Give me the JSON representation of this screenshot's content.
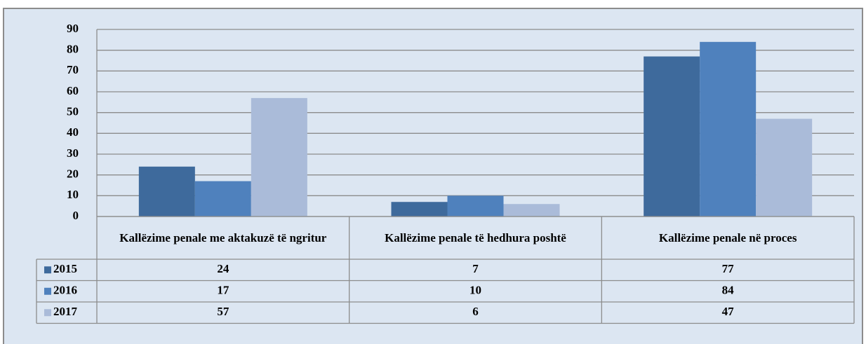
{
  "chart_data": {
    "type": "bar",
    "categories": [
      "Kallëzime penale me aktakuzë të ngritur",
      "Kallëzime penale të hedhura poshtë",
      "Kallëzime penale në proces"
    ],
    "series": [
      {
        "name": "2015",
        "color": "#3e6a9c",
        "values": [
          24,
          7,
          77
        ]
      },
      {
        "name": "2016",
        "color": "#4f81bd",
        "values": [
          17,
          10,
          84
        ]
      },
      {
        "name": "2017",
        "color": "#aabbd9",
        "values": [
          57,
          6,
          47
        ]
      }
    ],
    "ylim": [
      0,
      90
    ],
    "yticks": [
      0,
      10,
      20,
      30,
      40,
      50,
      60,
      70,
      80,
      90
    ],
    "grid": true,
    "data_table": true
  }
}
